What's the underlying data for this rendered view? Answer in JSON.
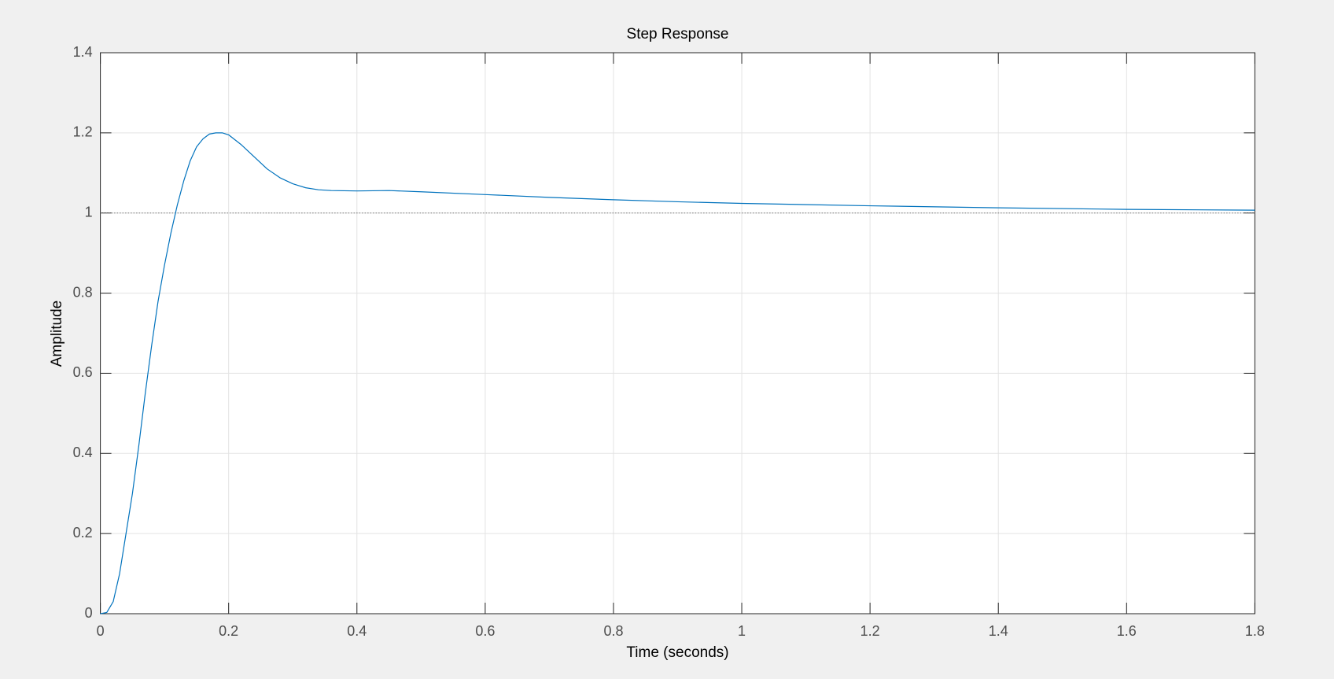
{
  "chart_data": {
    "type": "line",
    "title": "Step Response",
    "xlabel": "Time (seconds)",
    "ylabel": "Amplitude",
    "x": [
      0,
      0.01,
      0.02,
      0.03,
      0.04,
      0.05,
      0.06,
      0.07,
      0.08,
      0.09,
      0.1,
      0.11,
      0.12,
      0.13,
      0.14,
      0.15,
      0.16,
      0.17,
      0.18,
      0.19,
      0.2,
      0.22,
      0.24,
      0.26,
      0.28,
      0.3,
      0.32,
      0.34,
      0.36,
      0.4,
      0.45,
      0.5,
      0.6,
      0.7,
      0.8,
      0.9,
      1.0,
      1.2,
      1.4,
      1.6,
      1.8
    ],
    "series": [
      {
        "color": "#0072bd",
        "values": [
          0,
          0.003,
          0.03,
          0.1,
          0.2,
          0.3,
          0.42,
          0.55,
          0.67,
          0.78,
          0.87,
          0.95,
          1.02,
          1.08,
          1.13,
          1.165,
          1.185,
          1.197,
          1.2,
          1.2,
          1.195,
          1.17,
          1.14,
          1.11,
          1.088,
          1.073,
          1.063,
          1.058,
          1.056,
          1.055,
          1.056,
          1.053,
          1.046,
          1.039,
          1.033,
          1.028,
          1.024,
          1.018,
          1.013,
          1.009,
          1.007
        ]
      }
    ],
    "steady_state": 1,
    "xlim": [
      0,
      1.8
    ],
    "xticks": [
      0,
      0.2,
      0.4,
      0.6,
      0.8,
      1,
      1.2,
      1.4,
      1.6,
      1.8
    ],
    "ylim": [
      0,
      1.4
    ],
    "yticks": [
      0,
      0.2,
      0.4,
      0.6,
      0.8,
      1,
      1.2,
      1.4
    ],
    "grid": true
  }
}
